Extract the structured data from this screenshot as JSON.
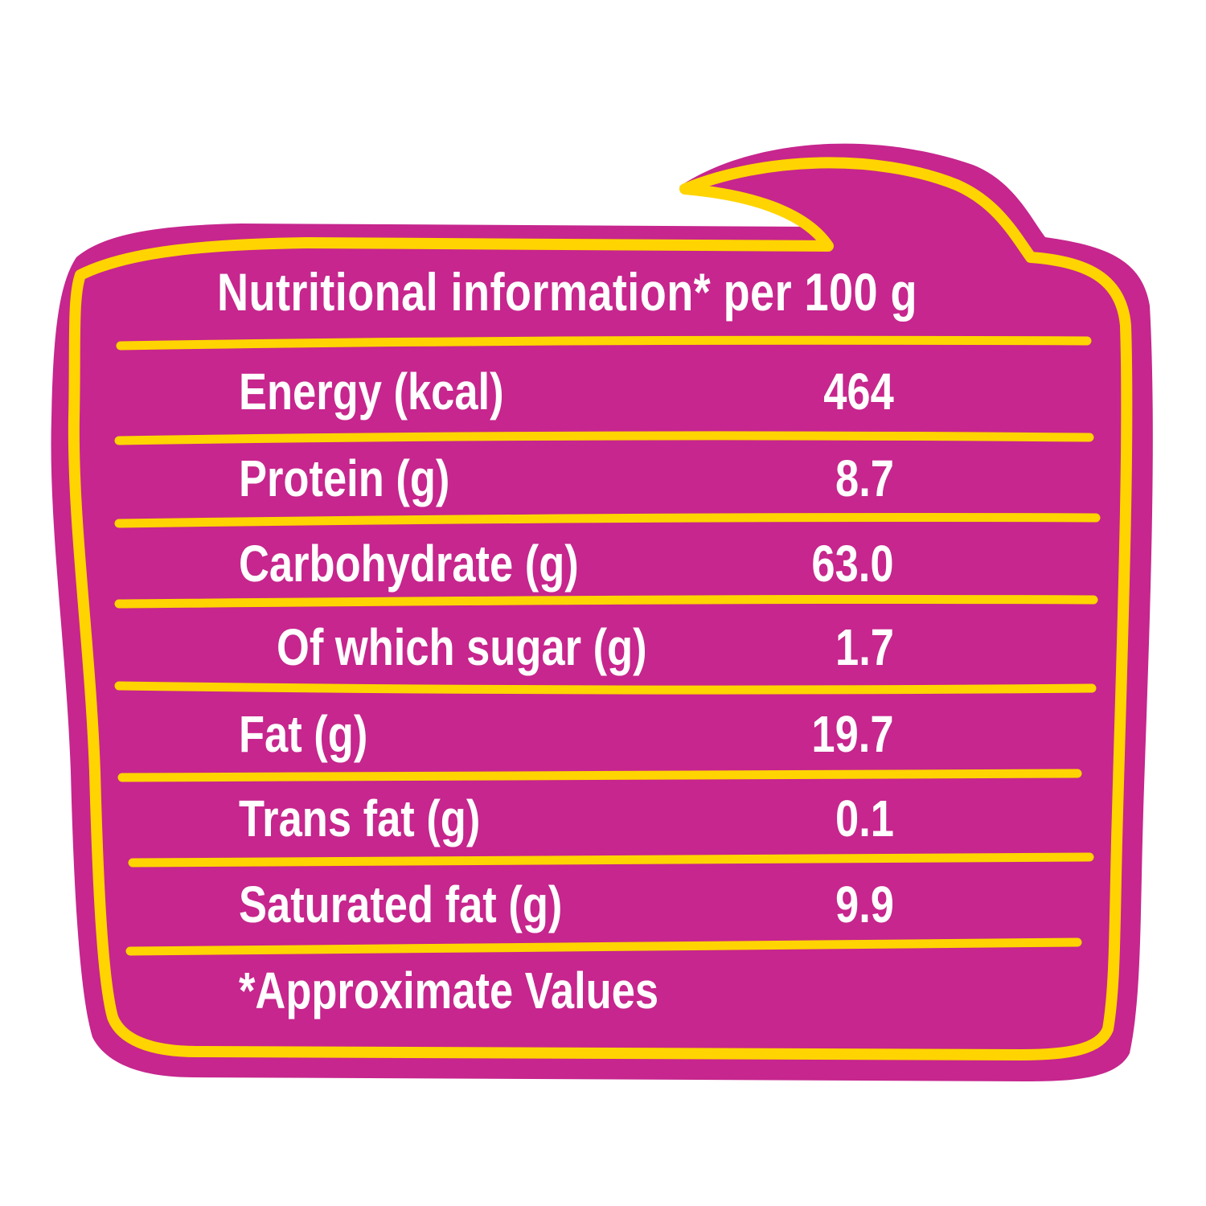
{
  "colors": {
    "panel_fill": "#C6268D",
    "outline": "#FFD400",
    "text": "#FFFFFF"
  },
  "panel": {
    "title": "Nutritional information* per 100 g",
    "rows": [
      {
        "label": "Energy (kcal)",
        "value": "464",
        "indent": false
      },
      {
        "label": "Protein (g)",
        "value": "8.7",
        "indent": false
      },
      {
        "label": "Carbohydrate (g)",
        "value": "63.0",
        "indent": false
      },
      {
        "label": "Of which sugar (g)",
        "value": "1.7",
        "indent": true
      },
      {
        "label": "Fat (g)",
        "value": "19.7",
        "indent": false
      },
      {
        "label": "Trans fat (g)",
        "value": "0.1",
        "indent": false
      },
      {
        "label": "Saturated fat (g)",
        "value": "9.9",
        "indent": false
      }
    ],
    "footnote": "*Approximate Values"
  }
}
